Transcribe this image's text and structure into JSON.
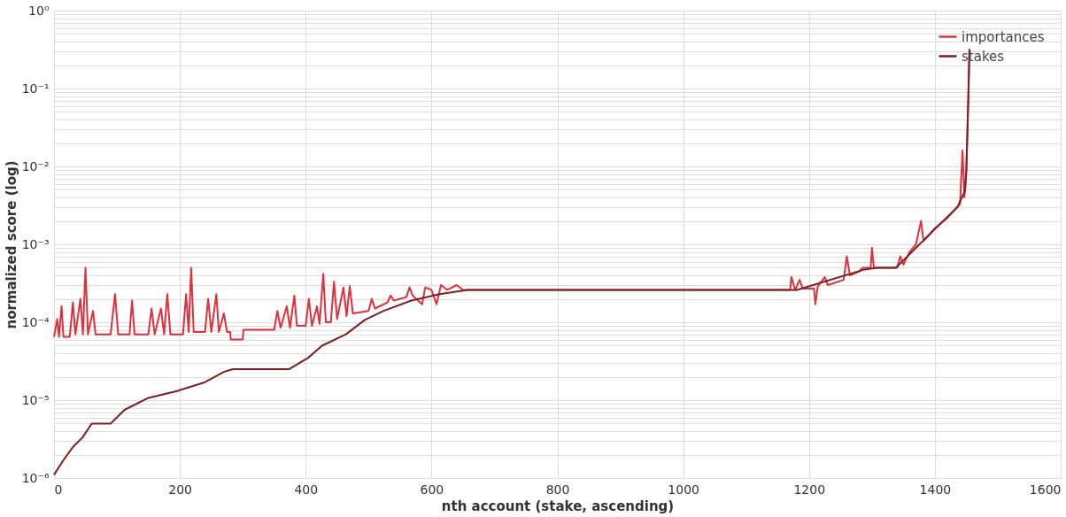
{
  "chart_data": {
    "type": "line",
    "xlabel": "nth account (stake, ascending)",
    "ylabel": "normalized score (log)",
    "log": "y",
    "grid": true,
    "legend": "top right",
    "line_style": "solid",
    "marker": "none",
    "xlim": [
      0,
      1600
    ],
    "xticks": [
      0,
      200,
      400,
      600,
      800,
      1000,
      1200,
      1400,
      1600
    ],
    "ylim": [
      1e-06,
      1
    ],
    "yticks": [
      {
        "value": 1e-06,
        "label": "10⁻⁶"
      },
      {
        "value": 2e-06,
        "label": null
      },
      {
        "value": 3e-06,
        "label": null
      },
      {
        "value": 4e-06,
        "label": null
      },
      {
        "value": 5e-06,
        "label": null
      },
      {
        "value": 6e-06,
        "label": null
      },
      {
        "value": 7e-06,
        "label": null
      },
      {
        "value": 8e-06,
        "label": null
      },
      {
        "value": 9e-06,
        "label": null
      },
      {
        "value": 1e-05,
        "label": "10⁻⁵"
      },
      {
        "value": 2e-05,
        "label": null
      },
      {
        "value": 3e-05,
        "label": null
      },
      {
        "value": 4e-05,
        "label": null
      },
      {
        "value": 5e-05,
        "label": null
      },
      {
        "value": 6e-05,
        "label": null
      },
      {
        "value": 7e-05,
        "label": null
      },
      {
        "value": 8e-05,
        "label": null
      },
      {
        "value": 9e-05,
        "label": null
      },
      {
        "value": 0.0001,
        "label": "10⁻⁴"
      },
      {
        "value": 0.0002,
        "label": null
      },
      {
        "value": 0.0003,
        "label": null
      },
      {
        "value": 0.0004,
        "label": null
      },
      {
        "value": 0.0005,
        "label": null
      },
      {
        "value": 0.0006,
        "label": null
      },
      {
        "value": 0.0007,
        "label": null
      },
      {
        "value": 0.0008,
        "label": null
      },
      {
        "value": 0.0009,
        "label": null
      },
      {
        "value": 0.001,
        "label": "10⁻³"
      },
      {
        "value": 0.002,
        "label": null
      },
      {
        "value": 0.003,
        "label": null
      },
      {
        "value": 0.004,
        "label": null
      },
      {
        "value": 0.005,
        "label": null
      },
      {
        "value": 0.006,
        "label": null
      },
      {
        "value": 0.007,
        "label": null
      },
      {
        "value": 0.008,
        "label": null
      },
      {
        "value": 0.009,
        "label": null
      },
      {
        "value": 0.01,
        "label": "10⁻²"
      },
      {
        "value": 0.02,
        "label": null
      },
      {
        "value": 0.03,
        "label": null
      },
      {
        "value": 0.04,
        "label": null
      },
      {
        "value": 0.05,
        "label": null
      },
      {
        "value": 0.06,
        "label": null
      },
      {
        "value": 0.07,
        "label": null
      },
      {
        "value": 0.08,
        "label": null
      },
      {
        "value": 0.09,
        "label": null
      },
      {
        "value": 0.1,
        "label": "10⁻¹"
      },
      {
        "value": 0.2,
        "label": null
      },
      {
        "value": 0.3,
        "label": null
      },
      {
        "value": 0.4,
        "label": null
      },
      {
        "value": 0.5,
        "label": null
      },
      {
        "value": 0.6,
        "label": null
      },
      {
        "value": 0.7,
        "label": null
      },
      {
        "value": 0.8,
        "label": null
      },
      {
        "value": 0.9,
        "label": null
      },
      {
        "value": 1,
        "label": "10⁰"
      }
    ],
    "series": [
      {
        "name": "importances",
        "color": "#e0303c",
        "x": [
          0,
          5,
          8,
          12,
          15,
          25,
          30,
          34,
          42,
          46,
          50,
          54,
          62,
          66,
          90,
          97,
          102,
          120,
          124,
          128,
          150,
          155,
          160,
          170,
          175,
          180,
          185,
          205,
          210,
          214,
          218,
          222,
          240,
          245,
          250,
          258,
          262,
          270,
          275,
          280,
          281,
          300,
          301,
          350,
          355,
          360,
          370,
          375,
          382,
          386,
          400,
          405,
          410,
          418,
          422,
          428,
          432,
          440,
          445,
          450,
          460,
          465,
          470,
          475,
          500,
          505,
          510,
          530,
          535,
          540,
          560,
          565,
          570,
          585,
          590,
          600,
          608,
          615,
          625,
          640,
          650,
          1170,
          1172,
          1178,
          1185,
          1190,
          1208,
          1210,
          1214,
          1225,
          1230,
          1255,
          1260,
          1265,
          1280,
          1285,
          1298,
          1300,
          1303,
          1340,
          1345,
          1350,
          1360,
          1370,
          1378,
          1382,
          1400,
          1420,
          1440,
          1444,
          1447,
          1450,
          1453,
          1455
        ],
        "values": [
          6.5e-05,
          0.00011,
          6.5e-05,
          0.00016,
          6.5e-05,
          6.5e-05,
          0.00018,
          7e-05,
          0.0002,
          7e-05,
          0.0005,
          7e-05,
          0.00014,
          7e-05,
          7e-05,
          0.00023,
          7e-05,
          7e-05,
          0.00019,
          7e-05,
          7e-05,
          0.00015,
          7e-05,
          0.00015,
          7e-05,
          0.00023,
          7e-05,
          7e-05,
          0.00023,
          7.5e-05,
          0.0005,
          7.5e-05,
          7.5e-05,
          0.0002,
          7.5e-05,
          0.00023,
          7.5e-05,
          0.00013,
          7.5e-05,
          7.5e-05,
          6e-05,
          6e-05,
          8e-05,
          8e-05,
          0.00014,
          8.5e-05,
          0.00016,
          8.5e-05,
          0.00022,
          9e-05,
          9e-05,
          0.0002,
          9e-05,
          0.00016,
          9.5e-05,
          0.00042,
          0.0001,
          0.0001,
          0.00033,
          0.00011,
          0.00028,
          0.00012,
          0.00029,
          0.00013,
          0.00014,
          0.0002,
          0.00015,
          0.00018,
          0.00022,
          0.00019,
          0.00021,
          0.00028,
          0.00022,
          0.00017,
          0.00028,
          0.00026,
          0.00017,
          0.0003,
          0.00026,
          0.0003,
          0.00026,
          0.00026,
          0.00038,
          0.00026,
          0.00035,
          0.00027,
          0.00027,
          0.00017,
          0.00029,
          0.00038,
          0.0003,
          0.00035,
          0.0007,
          0.0004,
          0.00045,
          0.0005,
          0.0005,
          0.0009,
          0.0005,
          0.0005,
          0.0007,
          0.00055,
          0.0008,
          0.001,
          0.002,
          0.0011,
          0.0016,
          0.0022,
          0.0033,
          0.016,
          0.004,
          0.009,
          0.066,
          0.32
        ]
      },
      {
        "name": "stakes",
        "color": "#7a2025",
        "x": [
          0,
          15,
          30,
          45,
          60,
          90,
          112,
          150,
          194,
          240,
          270,
          284,
          374,
          404,
          426,
          464,
          494,
          524,
          568,
          613,
          658,
          1181,
          1286,
          1308,
          1338,
          1371,
          1401,
          1436,
          1448,
          1450,
          1453,
          1455
        ],
        "values": [
          1.1e-06,
          1.7e-06,
          2.5e-06,
          3.3e-06,
          5e-06,
          5e-06,
          7.5e-06,
          1.07e-05,
          1.3e-05,
          1.7e-05,
          2.3e-05,
          2.5e-05,
          2.5e-05,
          3.5e-05,
          5e-05,
          7e-05,
          0.000107,
          0.00014,
          0.00019,
          0.00023,
          0.00026,
          0.00026,
          0.00047,
          0.0005,
          0.0005,
          0.00092,
          0.0016,
          0.003,
          0.0049,
          0.0085,
          0.066,
          0.32
        ]
      }
    ]
  }
}
